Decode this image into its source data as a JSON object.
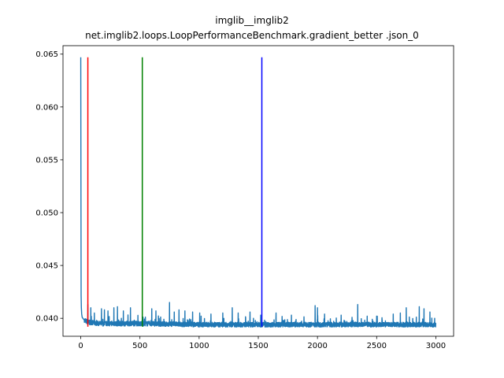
{
  "chart_data": {
    "type": "line",
    "title": "imglib__imglib2",
    "subtitle": "net.imglib2.loops.LoopPerformanceBenchmark.gradient_better .json_0",
    "xlabel": "",
    "ylabel": "",
    "xlim": [
      -150,
      3150
    ],
    "ylim": [
      0.0383,
      0.0658
    ],
    "x_ticks": [
      0,
      500,
      1000,
      1500,
      2000,
      2500,
      3000
    ],
    "x_tick_labels": [
      "0",
      "500",
      "1000",
      "1500",
      "2000",
      "2500",
      "3000"
    ],
    "y_ticks": [
      0.04,
      0.045,
      0.05,
      0.055,
      0.06,
      0.065
    ],
    "y_tick_labels": [
      "0.040",
      "0.045",
      "0.050",
      "0.055",
      "0.060",
      "0.065"
    ],
    "grid": false,
    "legend": "none",
    "series": [
      {
        "color": "#1f77b4",
        "n_points": 3000,
        "baseline": 0.0394,
        "x": [
          0,
          3,
          5,
          8,
          12,
          18,
          25,
          35,
          50,
          70,
          100,
          150,
          200,
          300,
          500,
          1000,
          2000,
          3000
        ],
        "y": [
          0.0647,
          0.0422,
          0.041,
          0.0404,
          0.0401,
          0.04,
          0.0399,
          0.0398,
          0.0397,
          0.0396,
          0.0396,
          0.0395,
          0.0395,
          0.0395,
          0.0395,
          0.0394,
          0.0394,
          0.0394
        ],
        "spikes": [
          [
            60,
            0.0413
          ],
          [
            85,
            0.041
          ],
          [
            115,
            0.0405
          ],
          [
            175,
            0.0409
          ],
          [
            200,
            0.0408
          ],
          [
            230,
            0.0407
          ],
          [
            280,
            0.041
          ],
          [
            310,
            0.0411
          ],
          [
            360,
            0.0407
          ],
          [
            420,
            0.041
          ],
          [
            600,
            0.0409
          ],
          [
            635,
            0.0407
          ],
          [
            750,
            0.0415
          ],
          [
            790,
            0.0406
          ],
          [
            830,
            0.0408
          ],
          [
            880,
            0.0407
          ],
          [
            945,
            0.0406
          ],
          [
            1005,
            0.0405
          ],
          [
            1100,
            0.0404
          ],
          [
            1200,
            0.0405
          ],
          [
            1280,
            0.041
          ],
          [
            1330,
            0.0405
          ],
          [
            1430,
            0.0406
          ],
          [
            1520,
            0.0403
          ],
          [
            1650,
            0.0405
          ],
          [
            1780,
            0.0403
          ],
          [
            1980,
            0.0412
          ],
          [
            2000,
            0.041
          ],
          [
            2060,
            0.0404
          ],
          [
            2200,
            0.0403
          ],
          [
            2340,
            0.0413
          ],
          [
            2420,
            0.0402
          ],
          [
            2500,
            0.0402
          ],
          [
            2640,
            0.0404
          ],
          [
            2700,
            0.0405
          ],
          [
            2750,
            0.041
          ],
          [
            2860,
            0.0411
          ],
          [
            2900,
            0.0409
          ],
          [
            2950,
            0.0406
          ],
          [
            2990,
            0.04
          ]
        ]
      }
    ],
    "vlines": [
      {
        "x": 60,
        "ymin": 0.0392,
        "ymax": 0.0647,
        "color": "#ff0000"
      },
      {
        "x": 520,
        "ymin": 0.0392,
        "ymax": 0.0647,
        "color": "#008000"
      },
      {
        "x": 1530,
        "ymin": 0.0392,
        "ymax": 0.0647,
        "color": "#0000ff"
      }
    ]
  }
}
